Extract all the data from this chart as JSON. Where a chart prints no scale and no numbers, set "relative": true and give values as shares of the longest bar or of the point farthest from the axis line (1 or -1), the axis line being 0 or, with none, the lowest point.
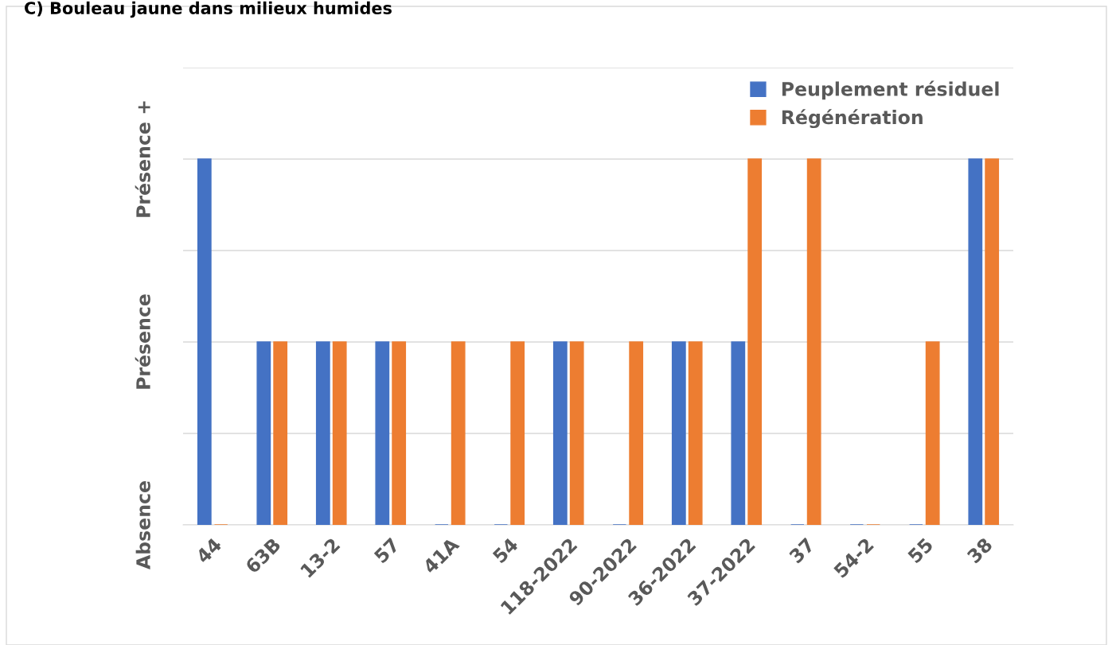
{
  "chart_data": {
    "type": "bar",
    "title": "C) Bouleau jaune dans milieux humides",
    "categories": [
      "44",
      "63B",
      "13-2",
      "57",
      "41A",
      "54",
      "118-2022",
      "90-2022",
      "36-2022",
      "37-2022",
      "37",
      "54-2",
      "55",
      "38"
    ],
    "series": [
      {
        "name": "Peuplement résiduel",
        "color": "#4472c4",
        "values": [
          1,
          0.5,
          0.5,
          0.5,
          0,
          0,
          0.5,
          0,
          0.5,
          0.5,
          0,
          0,
          0,
          1
        ]
      },
      {
        "name": "Régénération",
        "color": "#ed7d31",
        "values": [
          0,
          0.5,
          0.5,
          0.5,
          0.5,
          0.5,
          0.5,
          0.5,
          0.5,
          1,
          1,
          0,
          0.5,
          1
        ]
      }
    ],
    "relative": true,
    "annotations": [
      "Absence",
      "Présence",
      "Présence +"
    ],
    "grid": "y",
    "legend": "top right"
  }
}
